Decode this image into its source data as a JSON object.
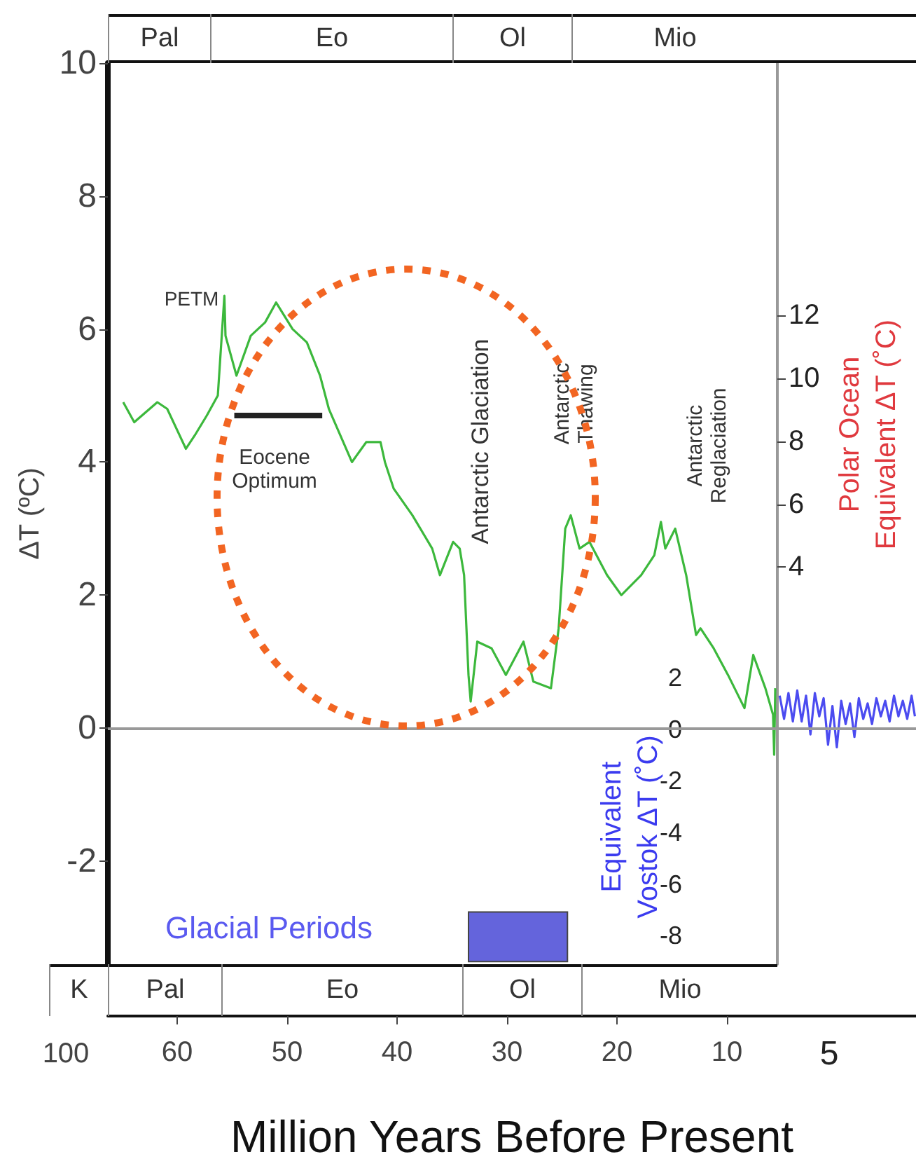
{
  "chart_data": {
    "type": "line",
    "xlabel": "Million Years Before Present",
    "ylabel": "ΔT (ºC)",
    "y2label": "Polar Ocean Equivalent ΔT (˚C)",
    "y3label": "Equivalent Vostok ΔT (˚C)",
    "xlim": [
      66.3,
      -7.2
    ],
    "xticks": [
      60,
      50,
      40,
      30,
      20,
      10
    ],
    "ylim": [
      -3.55,
      10
    ],
    "yticks": [
      -2,
      0,
      2,
      4,
      6,
      8,
      10
    ],
    "y2lim": [
      -8.6,
      20
    ],
    "y2ticks": [
      4,
      6,
      8,
      10,
      12
    ],
    "y3lim": [
      -9.1,
      25.8
    ],
    "y3ticks": [
      -8,
      -6,
      -4,
      -2,
      0,
      2
    ],
    "series": [
      {
        "color": "#3cb83c",
        "x": [
          64.9,
          63.9,
          61.8,
          60.9,
          59.2,
          58.4,
          57.3,
          56.3,
          55.7,
          55.6,
          54.6,
          53.3,
          52.0,
          51.0,
          49.5,
          48.2,
          47.0,
          46.2,
          44.1,
          42.8,
          41.5,
          41.1,
          40.3,
          38.6,
          36.8,
          36.1,
          34.9,
          34.3,
          33.9,
          33.5,
          33.3,
          32.7,
          31.4,
          30.1,
          28.5,
          27.6,
          26.0,
          25.3,
          24.7,
          24.2,
          23.4,
          22.5,
          20.9,
          19.6,
          17.8,
          16.6,
          16.0,
          15.6,
          14.7,
          13.7,
          12.8,
          12.4,
          11.2,
          9.9,
          8.4,
          7.6,
          6.5,
          5.8,
          5.7,
          5.6
        ],
        "values": [
          4.9,
          4.6,
          4.9,
          4.8,
          4.2,
          4.4,
          4.7,
          5.0,
          6.5,
          5.9,
          5.3,
          5.9,
          6.1,
          6.4,
          6.0,
          5.8,
          5.3,
          4.8,
          4.0,
          4.3,
          4.3,
          4.0,
          3.6,
          3.2,
          2.7,
          2.3,
          2.8,
          2.7,
          2.3,
          0.8,
          0.4,
          1.3,
          1.2,
          0.8,
          1.3,
          0.7,
          0.6,
          1.5,
          3.0,
          3.2,
          2.7,
          2.8,
          2.3,
          2.0,
          2.3,
          2.6,
          3.1,
          2.7,
          3.0,
          2.3,
          1.4,
          1.5,
          1.2,
          0.8,
          0.3,
          1.1,
          0.6,
          0.2,
          -0.4,
          0.6
        ]
      },
      {
        "color": "#222222",
        "x": [
          54.8,
          46.8
        ],
        "values": [
          4.7,
          4.7
        ]
      },
      {
        "color": "#4b4bf0",
        "axis": "y3",
        "x": [
          5.2,
          4.8,
          4.4,
          4.0,
          3.6,
          3.2,
          2.8,
          2.4,
          2.0,
          1.6,
          1.2,
          0.8,
          0.4,
          0,
          -0.4,
          -0.8,
          -1.2,
          -1.6,
          -2.0,
          -2.4,
          -2.8,
          -3.2,
          -3.6,
          -4.0,
          -4.4,
          -4.8,
          -5.2,
          -5.6,
          -6.0,
          -6.4,
          -6.8,
          -7.1
        ],
        "values": [
          1.3,
          0.4,
          1.4,
          0.3,
          1.5,
          0.3,
          1.3,
          -0.2,
          1.4,
          0.5,
          1.2,
          -0.6,
          0.9,
          -0.7,
          1.1,
          0.2,
          1.0,
          -0.3,
          1.2,
          0.4,
          1.0,
          0.2,
          1.2,
          0.5,
          1.1,
          0.3,
          1.3,
          0.5,
          1.1,
          0.4,
          1.3,
          0.5
        ]
      }
    ],
    "ref_lines": [
      {
        "axis": "y",
        "value": 0,
        "color": "#999999"
      }
    ],
    "bands": [
      {
        "axis": "x",
        "from": 33.5,
        "to": 24.5,
        "color": "#6464dc"
      }
    ],
    "annotations": [
      {
        "text": "PETM",
        "x": 55.7,
        "y": 6.46
      },
      "Eocene Optimum",
      "Antarctic Glaciation",
      "Antarctic Thawing",
      "Antarctic Reglaciation",
      "Glacial Periods",
      "100",
      "5",
      "Pal",
      "Eo",
      "Ol",
      "Mio",
      "K",
      "Pal",
      "Eo",
      "Ol",
      "Mio"
    ],
    "grid": false
  }
}
